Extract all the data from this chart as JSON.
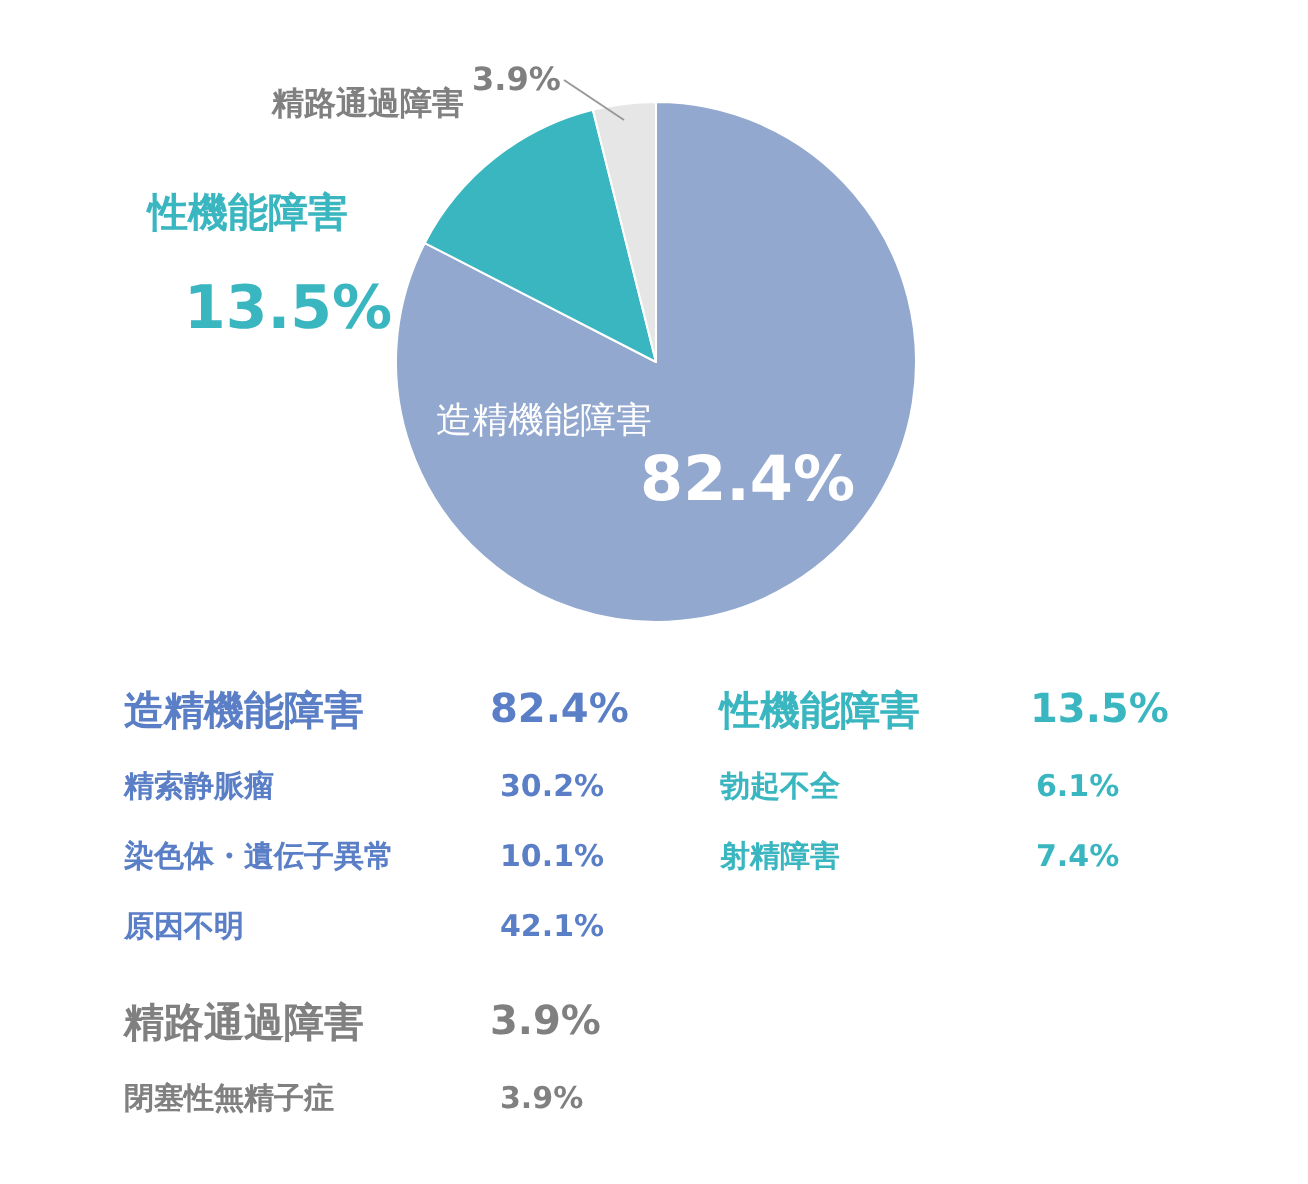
{
  "chart_data": {
    "type": "pie",
    "categories": [
      "造精機能障害",
      "性機能障害",
      "精路通過障害"
    ],
    "values": [
      82.4,
      13.5,
      3.9
    ],
    "colors": [
      "#93a8cf",
      "#3ab6c0",
      "#e6e6e6"
    ],
    "value_labels": [
      "82.4%",
      "13.5%",
      "3.9%"
    ],
    "legend": false,
    "annotations": [
      "造精機能障害",
      "82.4%",
      "精索静脈瘤",
      "30.2%",
      "染色体・遺伝子異常",
      "10.1%",
      "原因不明",
      "42.1%",
      "性機能障害",
      "13.5%",
      "勃起不全",
      "6.1%",
      "射精障害",
      "7.4%",
      "精路通過障害",
      "3.9%",
      "閉塞性無精子症",
      "3.9%"
    ]
  }
}
